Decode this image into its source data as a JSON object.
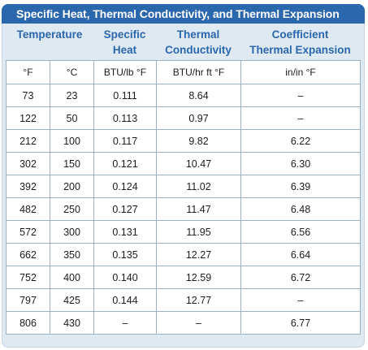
{
  "title": "Specific Heat, Thermal Conductivity, and Thermal Expansion",
  "headers": {
    "temperature": "Temperature",
    "specific_heat": [
      "Specific",
      "Heat"
    ],
    "thermal_conductivity": [
      "Thermal",
      "Conductivity"
    ],
    "coefficient": [
      "Coefficient",
      "Thermal Expansion"
    ]
  },
  "units": [
    "°F",
    "°C",
    "BTU/lb °F",
    "BTU/hr ft °F",
    "in/in °F"
  ],
  "rows": [
    [
      "73",
      "23",
      "0.111",
      "8.64",
      "–"
    ],
    [
      "122",
      "50",
      "0.113",
      "0.97",
      "–"
    ],
    [
      "212",
      "100",
      "0.117",
      "9.82",
      "6.22"
    ],
    [
      "302",
      "150",
      "0.121",
      "10.47",
      "6.30"
    ],
    [
      "392",
      "200",
      "0.124",
      "11.02",
      "6.39"
    ],
    [
      "482",
      "250",
      "0.127",
      "11.47",
      "6.48"
    ],
    [
      "572",
      "300",
      "0.131",
      "11.95",
      "6.56"
    ],
    [
      "662",
      "350",
      "0.135",
      "12.27",
      "6.64"
    ],
    [
      "752",
      "400",
      "0.140",
      "12.59",
      "6.72"
    ],
    [
      "797",
      "425",
      "0.144",
      "12.77",
      "–"
    ],
    [
      "806",
      "430",
      "–",
      "–",
      "6.77"
    ]
  ],
  "colors": {
    "title_bg": "#2a67ad",
    "header_text": "#2a67ad",
    "panel_bg": "#dfe9f2",
    "grid_line": "#9db0c2"
  }
}
